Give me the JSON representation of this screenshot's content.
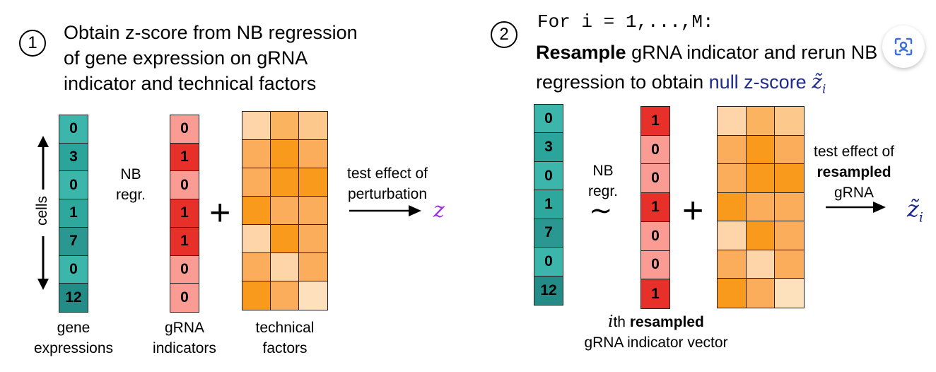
{
  "panel1": {
    "step": "1",
    "heading_lines": [
      "Obtain z-score from NB regression",
      "of gene expression on gRNA",
      "indicator and technical factors"
    ],
    "gene_expressions": [
      "0",
      "3",
      "0",
      "1",
      "7",
      "0",
      "12"
    ],
    "gene_colors": [
      "#3cb6aa",
      "#2ba59b",
      "#3cb6aa",
      "#2ea89d",
      "#2a9890",
      "#3cb6aa",
      "#238c86"
    ],
    "grna": [
      "0",
      "1",
      "0",
      "1",
      "1",
      "0",
      "0"
    ],
    "cells_label": "cells",
    "nb_label_1": "NB",
    "nb_label_2": "regr.",
    "test_label_1": "test effect of",
    "test_label_2": "perturbation",
    "z_symbol": "z",
    "gene_label_1": "gene",
    "gene_label_2": "expressions",
    "grna_label_1": "gRNA",
    "grna_label_2": "indicators",
    "tech_label_1": "technical",
    "tech_label_2": "factors",
    "tech_colors": [
      [
        "#fdd5a8",
        "#fbb360",
        "#fdc88c"
      ],
      [
        "#fbad5c",
        "#f99a1d",
        "#fbad5c"
      ],
      [
        "#fbad5c",
        "#f99a1d",
        "#f99a1d"
      ],
      [
        "#f99a1d",
        "#fbad5c",
        "#fbad5c"
      ],
      [
        "#fdd5a8",
        "#f99a1d",
        "#fbad5c"
      ],
      [
        "#fbad5c",
        "#fdd5a8",
        "#fbad5c"
      ],
      [
        "#f99a1d",
        "#fbad5c",
        "#fde1bc"
      ]
    ]
  },
  "panel2": {
    "step": "2",
    "code_line": "For i = 1,...,M:",
    "heading_bold": "Resample",
    "heading_rest": " gRNA indicator and rerun NB",
    "heading_line2": "regression to obtain ",
    "null_label": "null z-score ",
    "gene_expressions": [
      "0",
      "3",
      "0",
      "1",
      "7",
      "0",
      "12"
    ],
    "grna": [
      "1",
      "0",
      "0",
      "1",
      "0",
      "0",
      "1"
    ],
    "nb_label_1": "NB",
    "nb_label_2": "regr.",
    "tilde": "∼",
    "test_label_1": "test effect of",
    "test_label_2": "resampled",
    "test_label_3": "gRNA",
    "ith_prefix": "i",
    "ith_mid": "th ",
    "ith_bold": "resampled",
    "ith_line2": "gRNA indicator vector",
    "tech_colors": [
      [
        "#fdd5a8",
        "#fbb360",
        "#fdc88c"
      ],
      [
        "#fbad5c",
        "#f99a1d",
        "#fbad5c"
      ],
      [
        "#fbad5c",
        "#f99a1d",
        "#f99a1d"
      ],
      [
        "#f99a1d",
        "#fbad5c",
        "#fbad5c"
      ],
      [
        "#fdd5a8",
        "#f99a1d",
        "#fbad5c"
      ],
      [
        "#fbad5c",
        "#fdd5a8",
        "#fbad5c"
      ],
      [
        "#f99a1d",
        "#fbad5c",
        "#fde1bc"
      ]
    ]
  },
  "colors": {
    "grna_on": "#e8302a",
    "grna_off": "#fa9b94",
    "z_purple": "#9b30e0",
    "z_navy": "#1f2a8f"
  },
  "icons": {
    "lens": "visual-search-icon"
  }
}
